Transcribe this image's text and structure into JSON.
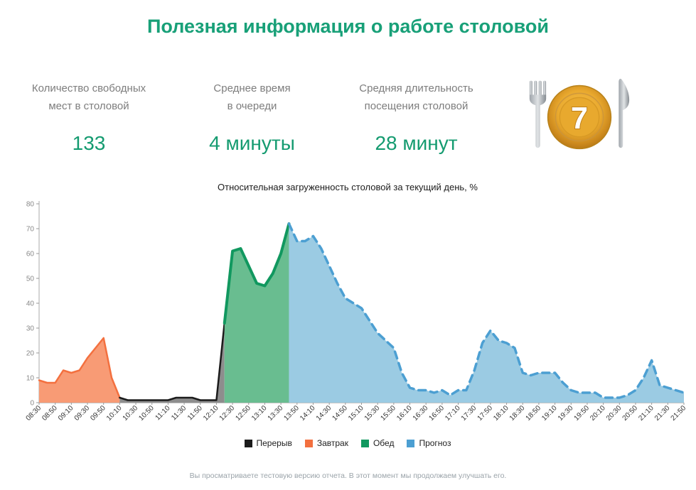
{
  "page": {
    "title": "Полезная информация о работе столовой",
    "footer": "Вы просматриваете тестовую версию отчета. В этот момент мы продолжаем улучшать его."
  },
  "colors": {
    "accent_green": "#18A078",
    "value_green": "#149B70",
    "break": "#1B1B1B",
    "breakfast": "#F3703F",
    "lunch": "#11985F",
    "forecast": "#4C9FD2"
  },
  "stats": [
    {
      "label1": "Количество свободных",
      "label2": "мест в столовой",
      "value": "133"
    },
    {
      "label1": "Среднее время",
      "label2": "в очереди",
      "value": "4 минуты"
    },
    {
      "label1": "Средняя длительность",
      "label2": "посещения столовой",
      "value": "28 минут"
    }
  ],
  "plate": {
    "number": "7"
  },
  "chart_data": {
    "type": "area",
    "title": "Относительная загруженность столовой за текущий день, %",
    "ylim": [
      0,
      80
    ],
    "yticks": [
      0,
      10,
      20,
      30,
      40,
      50,
      60,
      70,
      80
    ],
    "x_start": "08:30",
    "x_end": "21:50",
    "x_step_minutes": 10,
    "grid": false,
    "legend_position": "bottom",
    "xtick_labels": [
      "08:30",
      "08:50",
      "09:10",
      "09:30",
      "09:50",
      "10:10",
      "10:30",
      "10:50",
      "11:10",
      "11:30",
      "11:50",
      "12:10",
      "12:30",
      "12:50",
      "13:10",
      "13:30",
      "13:50",
      "14:10",
      "14:30",
      "14:50",
      "15:10",
      "15:30",
      "15:50",
      "16:10",
      "16:30",
      "16:50",
      "17:10",
      "17:30",
      "17:50",
      "18:10",
      "18:30",
      "18:50",
      "19:10",
      "19:30",
      "19:50",
      "20:10",
      "20:30",
      "20:50",
      "21:10",
      "21:30",
      "21:50"
    ],
    "series": [
      {
        "name": "Завтрак",
        "style": "solid",
        "color": "#F3703F",
        "fill": "#F89B75",
        "width": 2.5,
        "start_index": 0,
        "values": [
          9,
          8,
          8,
          13,
          12,
          13,
          18,
          22,
          26,
          10,
          2
        ]
      },
      {
        "name": "Перерыв",
        "style": "solid",
        "color": "#1B1B1B",
        "fill": "#8D8D8D",
        "width": 2.5,
        "start_index": 10,
        "values": [
          2,
          1,
          1,
          1,
          1,
          1,
          1,
          2,
          2,
          2,
          1,
          1,
          1,
          32
        ]
      },
      {
        "name": "Обед",
        "style": "solid",
        "color": "#11985F",
        "fill": "#69BD90",
        "width": 4,
        "start_index": 23,
        "values": [
          32,
          61,
          62,
          55,
          48,
          47,
          52,
          60,
          72
        ]
      },
      {
        "name": "Прогноз",
        "style": "dashed",
        "color": "#4C9FD2",
        "fill": "#9BCBE3",
        "width": 3.5,
        "start_index": 31,
        "values": [
          72,
          65,
          65,
          67,
          62,
          55,
          48,
          42,
          40,
          38,
          33,
          28,
          25,
          22,
          12,
          6,
          5,
          5,
          4,
          5,
          3,
          5,
          5,
          13,
          24,
          29,
          25,
          24,
          22,
          12,
          11,
          12,
          12,
          12,
          8,
          5,
          4,
          4,
          4,
          2,
          2,
          2,
          3,
          5,
          10,
          17,
          7,
          6,
          5,
          4
        ]
      }
    ],
    "legend": [
      {
        "label": "Перерыв",
        "color": "#1B1B1B"
      },
      {
        "label": "Завтрак",
        "color": "#F3703F"
      },
      {
        "label": "Обед",
        "color": "#11985F"
      },
      {
        "label": "Прогноз",
        "color": "#4C9FD2"
      }
    ]
  }
}
